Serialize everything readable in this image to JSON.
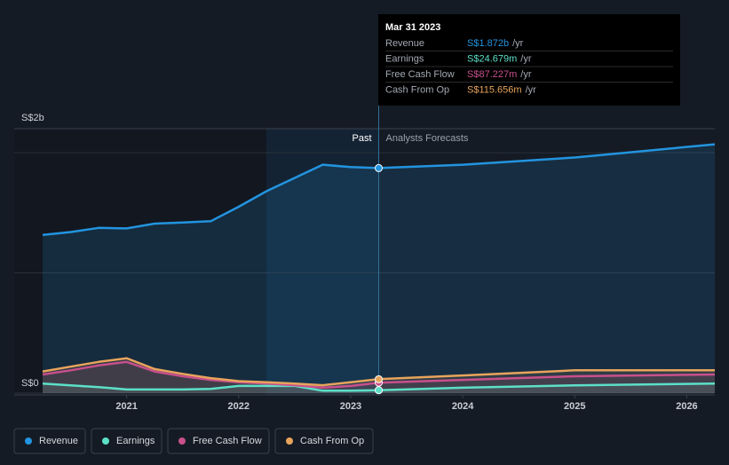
{
  "chart_data": {
    "type": "line",
    "x": [
      2020.25,
      2020.5,
      2020.75,
      2021,
      2021.25,
      2021.5,
      2021.75,
      2022,
      2022.25,
      2022.5,
      2022.75,
      2023,
      2023.25,
      2024,
      2025,
      2026.25
    ],
    "series": [
      {
        "name": "Revenue",
        "color": "#2394df",
        "values": [
          1.316,
          1.34,
          1.375,
          1.37,
          1.41,
          1.42,
          1.43,
          1.55,
          1.68,
          1.79,
          1.9,
          1.88,
          1.872,
          1.9,
          1.96,
          2.07
        ]
      },
      {
        "name": "Earnings",
        "color": "#5ce0c8",
        "values": [
          0.08,
          0.065,
          0.05,
          0.03,
          0.03,
          0.03,
          0.035,
          0.06,
          0.06,
          0.06,
          0.02,
          0.02,
          0.0247,
          0.045,
          0.065,
          0.08
        ]
      },
      {
        "name": "Free Cash Flow",
        "color": "#c8508c",
        "values": [
          0.155,
          0.19,
          0.23,
          0.26,
          0.18,
          0.14,
          0.11,
          0.09,
          0.08,
          0.066,
          0.045,
          0.06,
          0.087,
          0.11,
          0.14,
          0.155
        ]
      },
      {
        "name": "Cash From Op",
        "color": "#e8a45c",
        "values": [
          0.18,
          0.22,
          0.26,
          0.29,
          0.2,
          0.16,
          0.125,
          0.1,
          0.09,
          0.08,
          0.066,
          0.09,
          0.1157,
          0.147,
          0.19,
          0.19
        ]
      }
    ],
    "xlim": [
      2020.25,
      2026.25
    ],
    "xticks": [
      2021,
      2022,
      2023,
      2024,
      2025,
      2026
    ],
    "ylim": [
      0,
      2.2
    ],
    "yticks": [
      {
        "value": 0,
        "label": "S$0"
      },
      {
        "value": 1,
        "label": null
      },
      {
        "value": 2,
        "label": "S$2b"
      }
    ],
    "grid": true,
    "past_until": 2023.25,
    "past_label": "Past",
    "forecast_label": "Analysts Forecasts",
    "tooltip": {
      "date": "Mar 31 2023",
      "values": [
        "S$1.872b",
        "S$24.679m",
        "S$87.227m",
        "S$115.656m"
      ],
      "unit": "/yr"
    }
  }
}
